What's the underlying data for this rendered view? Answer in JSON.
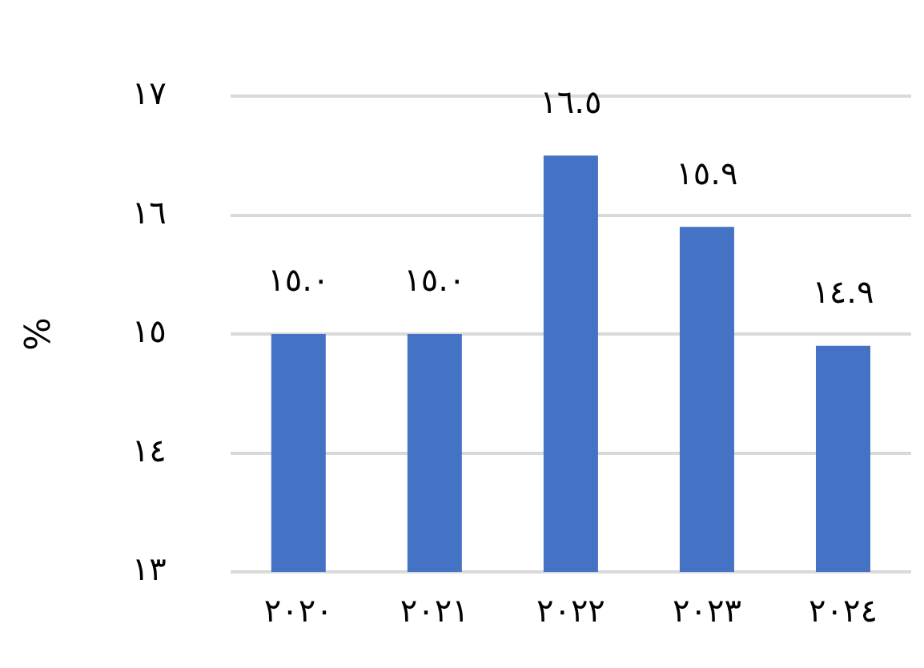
{
  "chart_data": {
    "type": "bar",
    "ylabel": "%",
    "categories": [
      "٢٠٢٠",
      "٢٠٢١",
      "٢٠٢٢",
      "٢٠٢٣",
      "٢٠٢٤"
    ],
    "values": [
      15.0,
      15.0,
      16.5,
      15.9,
      14.9
    ],
    "color": "#4472c4",
    "value_labels": [
      "١٥.٠",
      "١٥.٠",
      "١٦.٥",
      "١٥.٩",
      "١٤.٩"
    ],
    "ylim": [
      13,
      17
    ],
    "yticks": [
      {
        "value": 13,
        "label": "١٣"
      },
      {
        "value": 14,
        "label": "١٤"
      },
      {
        "value": 15,
        "label": "١٥"
      },
      {
        "value": 16,
        "label": "١٦"
      },
      {
        "value": 17,
        "label": "١٧"
      }
    ],
    "grid": "y",
    "legend": false
  }
}
